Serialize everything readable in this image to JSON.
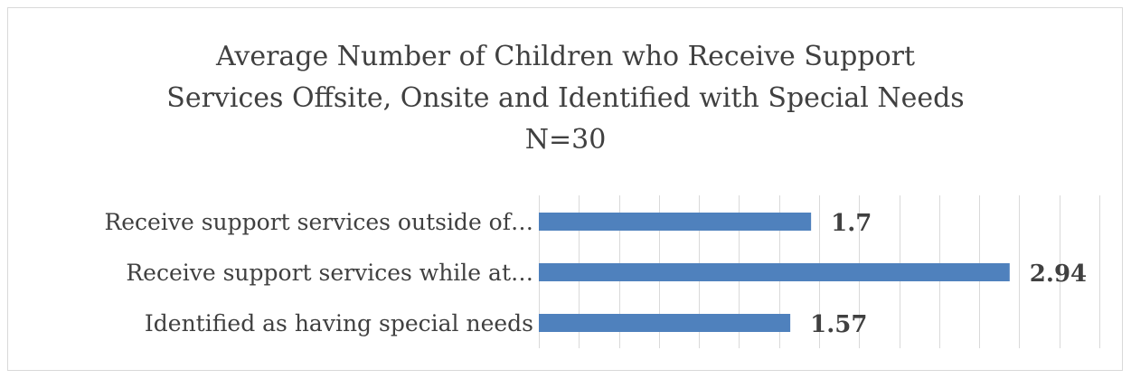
{
  "chart_data": {
    "type": "bar",
    "orientation": "horizontal",
    "title_lines": [
      "Average Number of Children who Receive Support",
      "Services Offsite, Onsite and Identified with Special Needs",
      "N=30"
    ],
    "categories": [
      "Receive support services outside of…",
      "Receive support services while at…",
      "Identified as having special needs"
    ],
    "values": [
      1.7,
      2.94,
      1.57
    ],
    "value_labels": [
      "1.7",
      "2.94",
      "1.57"
    ],
    "xlim": [
      0,
      3.5
    ],
    "x_gridline_step": 0.25,
    "grid": true,
    "legend": "none",
    "bar_color": "#4f81bd",
    "gridline_color": "#d9d9d9"
  }
}
